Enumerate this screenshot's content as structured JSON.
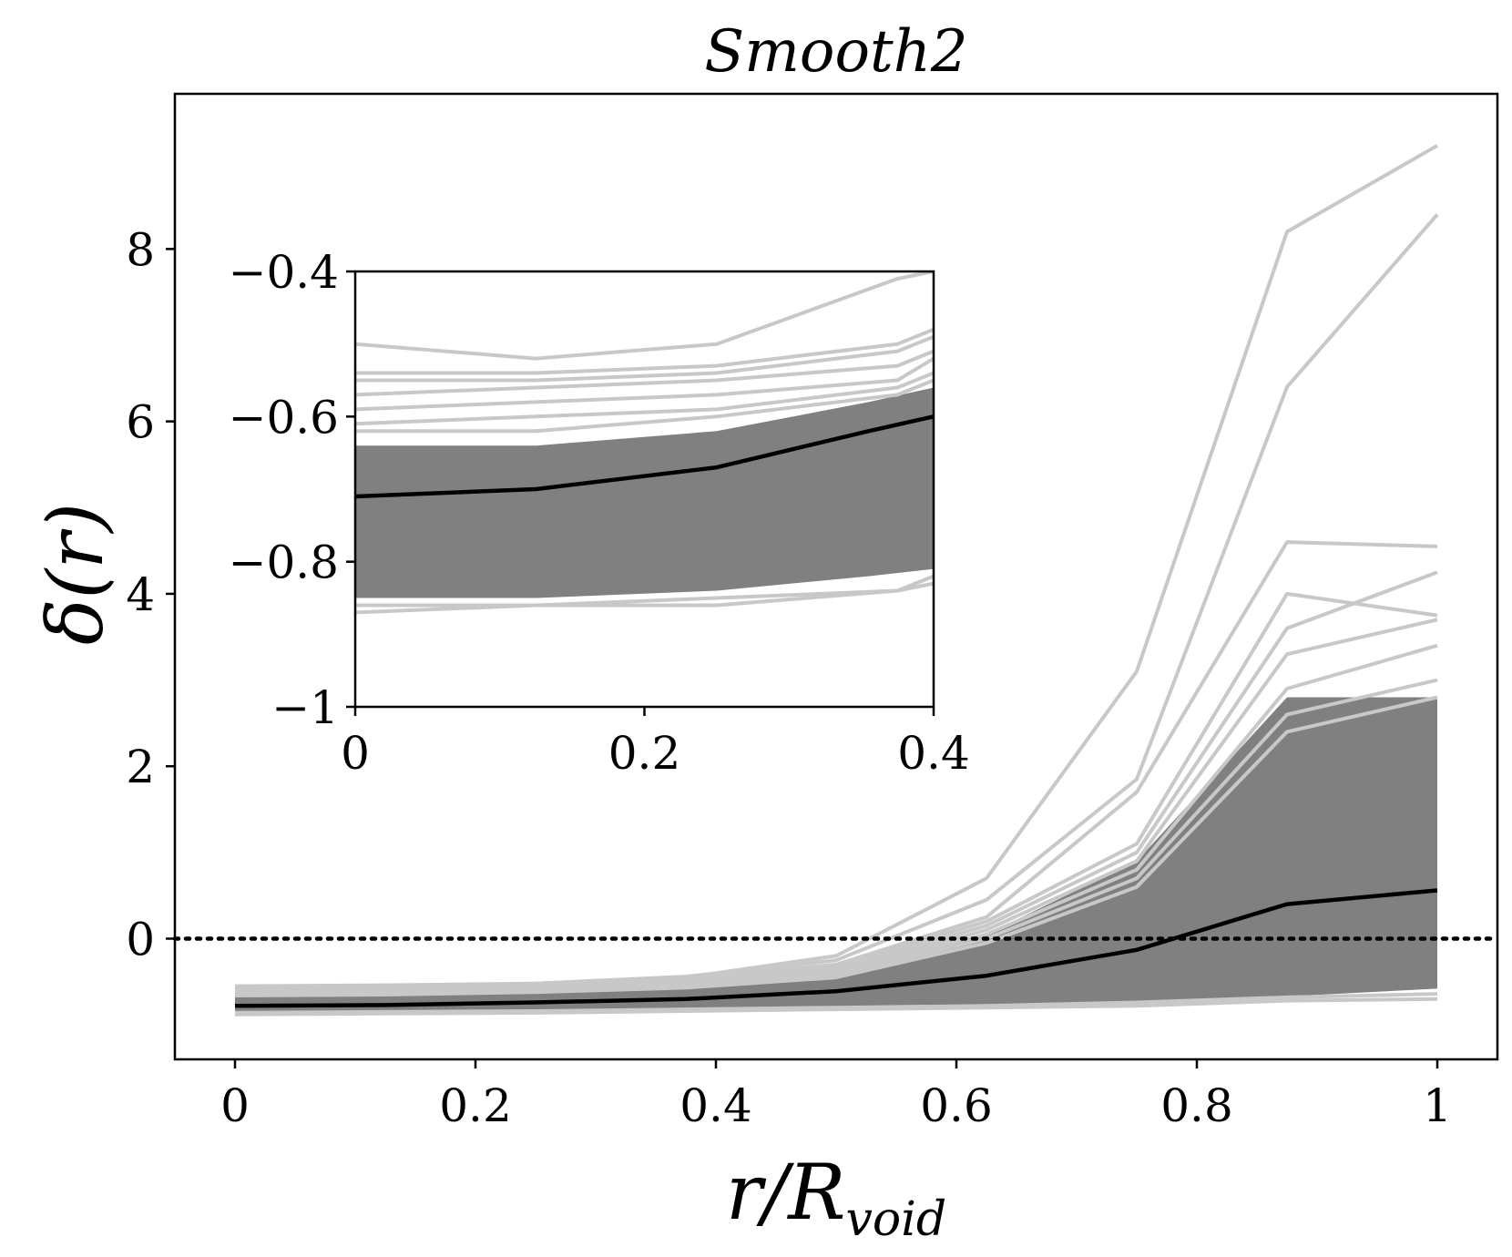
{
  "chart_data": {
    "type": "line",
    "title": "Smooth2",
    "xlabel": {
      "main": "r/R",
      "subscript": "void"
    },
    "ylabel": "δ(r)",
    "xlim": [
      -0.05,
      1.05
    ],
    "ylim": [
      -1.4,
      9.8
    ],
    "x": [
      0,
      0.125,
      0.25,
      0.375,
      0.5,
      0.625,
      0.75,
      0.875,
      1
    ],
    "x_ticks": [
      0,
      0.2,
      0.4,
      0.6,
      0.8,
      1
    ],
    "x_tick_labels": [
      "0",
      "0.2",
      "0.4",
      "0.6",
      "0.8",
      "1"
    ],
    "y_ticks": [
      0,
      2,
      4,
      6,
      8
    ],
    "y_tick_labels": [
      "0",
      "2",
      "4",
      "6",
      "8"
    ],
    "reference_line": {
      "y": 0,
      "style": "dotted",
      "color": "#000000"
    },
    "series": [
      {
        "role": "mean",
        "color": "#000000",
        "values": [
          -0.78,
          -0.77,
          -0.74,
          -0.7,
          -0.61,
          -0.43,
          -0.13,
          0.4,
          0.56
        ]
      },
      {
        "role": "individual",
        "color": "#c8c8c8",
        "values": [
          -0.55,
          -0.54,
          -0.52,
          -0.45,
          -0.2,
          0.7,
          3.1,
          8.2,
          9.2
        ]
      },
      {
        "role": "individual",
        "color": "#c8c8c8",
        "values": [
          -0.58,
          -0.56,
          -0.52,
          -0.44,
          -0.25,
          0.45,
          1.85,
          6.4,
          8.4
        ]
      },
      {
        "role": "individual",
        "color": "#c8c8c8",
        "values": [
          -0.6,
          -0.58,
          -0.54,
          -0.46,
          -0.3,
          0.25,
          1.7,
          4.6,
          4.55
        ]
      },
      {
        "role": "individual",
        "color": "#c8c8c8",
        "values": [
          -0.6,
          -0.58,
          -0.55,
          -0.48,
          -0.32,
          0.2,
          1.1,
          4.0,
          3.75
        ]
      },
      {
        "role": "individual",
        "color": "#c8c8c8",
        "values": [
          -0.62,
          -0.6,
          -0.56,
          -0.5,
          -0.35,
          0.15,
          1.0,
          3.6,
          4.25
        ]
      },
      {
        "role": "individual",
        "color": "#c8c8c8",
        "values": [
          -0.62,
          -0.61,
          -0.58,
          -0.52,
          -0.38,
          0.1,
          0.9,
          3.3,
          3.7
        ]
      },
      {
        "role": "individual",
        "color": "#c8c8c8",
        "values": [
          -0.63,
          -0.62,
          -0.59,
          -0.54,
          -0.4,
          0.05,
          0.8,
          2.9,
          3.4
        ]
      },
      {
        "role": "individual",
        "color": "#c8c8c8",
        "values": [
          -0.65,
          -0.64,
          -0.61,
          -0.56,
          -0.42,
          0.0,
          0.7,
          2.6,
          3.0
        ]
      },
      {
        "role": "individual",
        "color": "#c8c8c8",
        "values": [
          -0.66,
          -0.65,
          -0.62,
          -0.57,
          -0.45,
          -0.05,
          0.6,
          2.4,
          2.8
        ]
      },
      {
        "role": "individual",
        "color": "#c8c8c8",
        "values": [
          -0.88,
          -0.87,
          -0.86,
          -0.84,
          -0.82,
          -0.8,
          -0.78,
          -0.72,
          -0.7
        ]
      },
      {
        "role": "individual",
        "color": "#c8c8c8",
        "values": [
          -0.86,
          -0.85,
          -0.84,
          -0.82,
          -0.8,
          -0.78,
          -0.74,
          -0.68,
          -0.64
        ]
      }
    ],
    "band": {
      "color": "#808080",
      "upper": [
        -0.6,
        -0.59,
        -0.57,
        -0.5,
        -0.35,
        0.05,
        0.9,
        2.8,
        2.8
      ],
      "lower": [
        -0.87,
        -0.86,
        -0.85,
        -0.83,
        -0.81,
        -0.78,
        -0.74,
        -0.67,
        -0.58
      ]
    },
    "inset": {
      "xlim": [
        0,
        0.4
      ],
      "ylim": [
        -1,
        -0.4
      ],
      "x_ticks": [
        0,
        0.2,
        0.4
      ],
      "x_tick_labels": [
        "0",
        "0.2",
        "0.4"
      ],
      "y_ticks": [
        -1,
        -0.8,
        -0.6,
        -0.4
      ],
      "y_tick_labels": [
        "−1",
        "−0.8",
        "−0.6",
        "−0.4"
      ],
      "mean_values": [
        -0.71,
        -0.7,
        -0.67,
        -0.62,
        -0.6
      ],
      "mean_x": [
        0,
        0.125,
        0.25,
        0.355,
        0.4
      ],
      "band_upper": [
        -0.64,
        -0.64,
        -0.62,
        -0.58,
        -0.56
      ],
      "band_lower": [
        -0.85,
        -0.85,
        -0.84,
        -0.82,
        -0.81
      ],
      "light_lines": [
        {
          "x": [
            0,
            0.125,
            0.25,
            0.375,
            0.4
          ],
          "values": [
            -0.5,
            -0.52,
            -0.5,
            -0.41,
            -0.4
          ]
        },
        {
          "x": [
            0,
            0.125,
            0.25,
            0.375,
            0.4
          ],
          "values": [
            -0.54,
            -0.54,
            -0.53,
            -0.5,
            -0.48
          ]
        },
        {
          "x": [
            0,
            0.125,
            0.25,
            0.375,
            0.4
          ],
          "values": [
            -0.55,
            -0.55,
            -0.54,
            -0.51,
            -0.49
          ]
        },
        {
          "x": [
            0,
            0.125,
            0.25,
            0.375,
            0.4
          ],
          "values": [
            -0.57,
            -0.56,
            -0.55,
            -0.53,
            -0.51
          ]
        },
        {
          "x": [
            0,
            0.125,
            0.25,
            0.375,
            0.4
          ],
          "values": [
            -0.59,
            -0.58,
            -0.57,
            -0.55,
            -0.52
          ]
        },
        {
          "x": [
            0,
            0.125,
            0.25,
            0.375,
            0.4
          ],
          "values": [
            -0.61,
            -0.6,
            -0.59,
            -0.56,
            -0.54
          ]
        },
        {
          "x": [
            0,
            0.125,
            0.25,
            0.375,
            0.4
          ],
          "values": [
            -0.62,
            -0.62,
            -0.6,
            -0.57,
            -0.55
          ]
        },
        {
          "x": [
            0,
            0.125,
            0.25,
            0.375,
            0.4
          ],
          "values": [
            -0.86,
            -0.86,
            -0.85,
            -0.84,
            -0.82
          ]
        },
        {
          "x": [
            0,
            0.125,
            0.25,
            0.375,
            0.4
          ],
          "values": [
            -0.87,
            -0.86,
            -0.86,
            -0.84,
            -0.83
          ]
        }
      ]
    }
  }
}
